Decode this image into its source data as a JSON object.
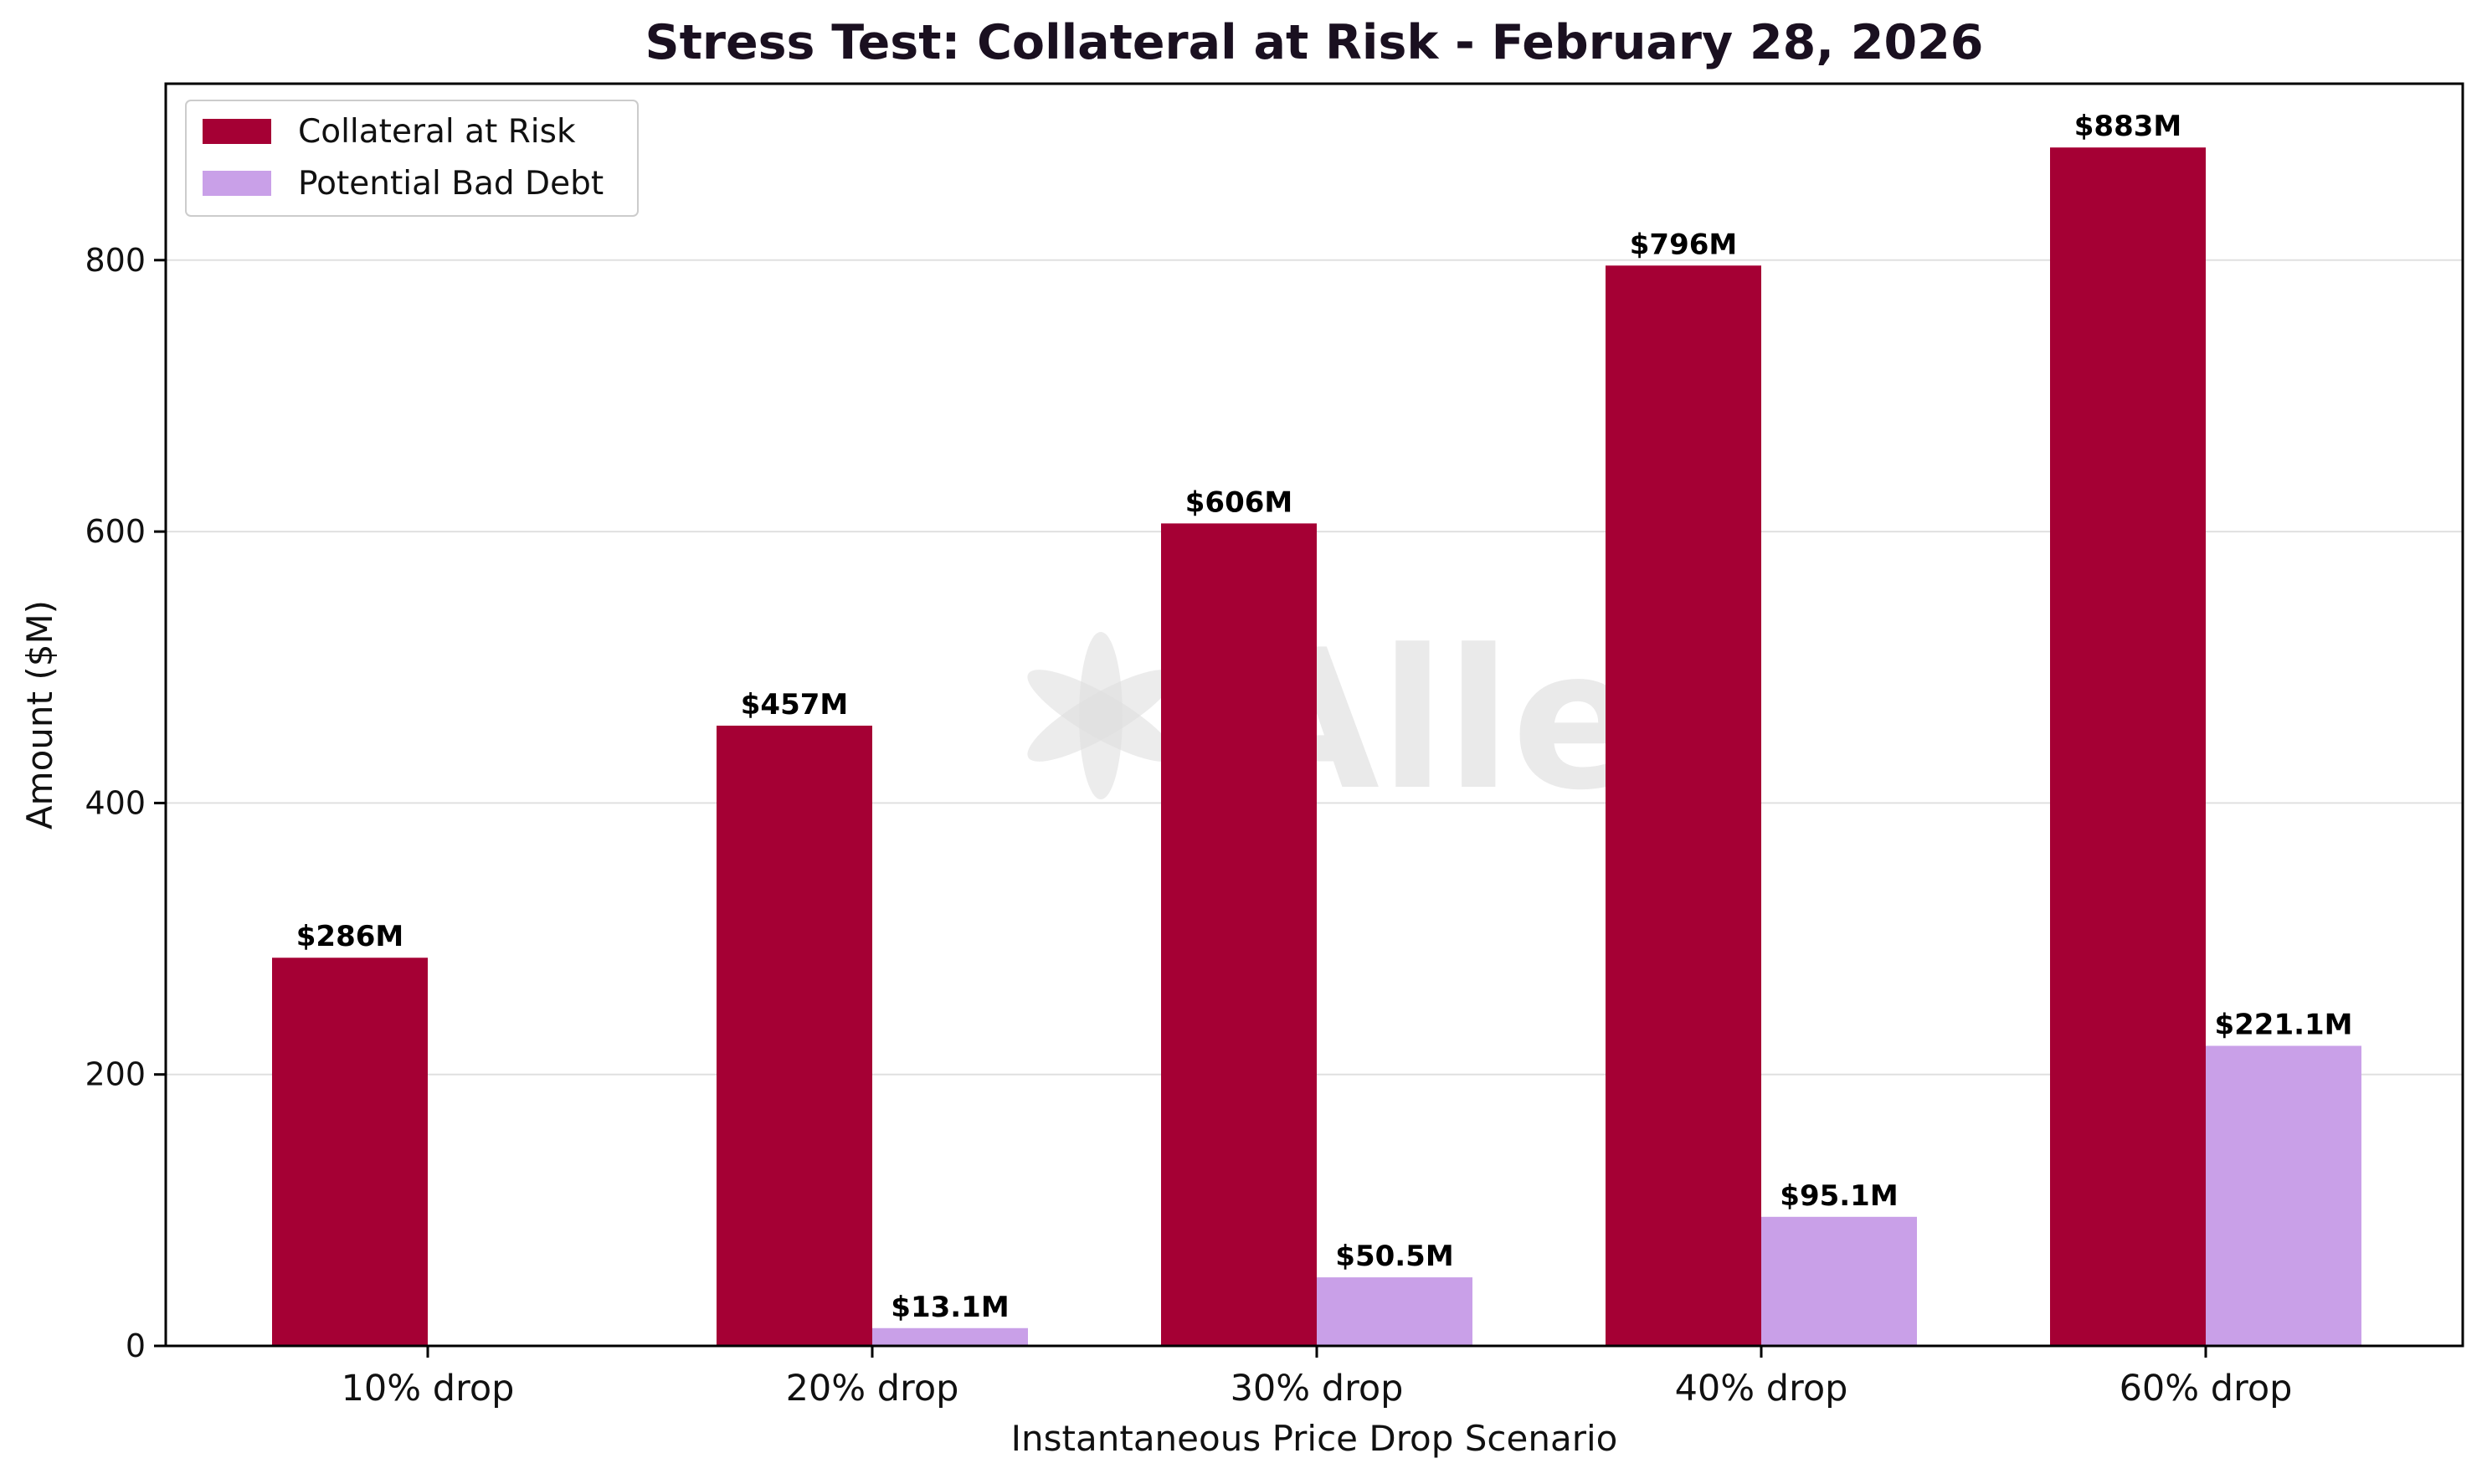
{
  "chart_data": {
    "type": "bar",
    "title": "Stress Test: Collateral at Risk - February 28, 2026",
    "xlabel": "Instantaneous Price Drop Scenario",
    "ylabel": "Amount ($M)",
    "ylim": [
      0,
      930
    ],
    "yticks": [
      0,
      200,
      400,
      600,
      800
    ],
    "grid": "horizontal",
    "legend_position": "top-left",
    "categories": [
      "10% drop",
      "20% drop",
      "30% drop",
      "40% drop",
      "60% drop"
    ],
    "series": [
      {
        "name": "Collateral at Risk",
        "color": "#a50034",
        "values": [
          286,
          457,
          606,
          796,
          883
        ],
        "labels": [
          "$286M",
          "$457M",
          "$606M",
          "$796M",
          "$883M"
        ]
      },
      {
        "name": "Potential Bad Debt",
        "color": "#c9a0e8",
        "values": [
          0,
          13.1,
          50.5,
          95.1,
          221.1
        ],
        "labels": [
          "",
          "$13.1M",
          "$50.5M",
          "$95.1M",
          "$221.1M"
        ]
      }
    ],
    "watermark": "Allez"
  }
}
